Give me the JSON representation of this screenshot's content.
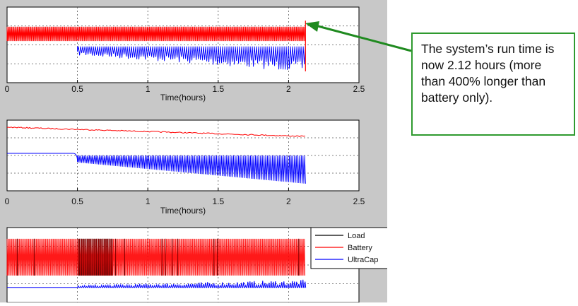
{
  "callout": {
    "text": "The system’s run time is now 2.12 hours (more than 400% longer than battery only).",
    "border_color": "#2f9a2f",
    "arrow_color": "#1f8a1f"
  },
  "chart_data": [
    {
      "type": "line",
      "title": "",
      "xlabel": "Time(hours)",
      "ylabel": "",
      "xlim": [
        0,
        2.5
      ],
      "x_ticks": [
        "0",
        "0.5",
        "1",
        "1.5",
        "2",
        "2.5"
      ],
      "grid": true,
      "series": [
        {
          "name": "Battery",
          "color": "#ff0000",
          "x_end": 2.12
        },
        {
          "name": "UltraCap",
          "color": "#0000ff",
          "x_start": 0.5,
          "x_end": 2.12
        }
      ]
    },
    {
      "type": "line",
      "title": "",
      "xlabel": "Time(hours)",
      "ylabel": "",
      "xlim": [
        0,
        2.5
      ],
      "x_ticks": [
        "0",
        "0.5",
        "1",
        "1.5",
        "2",
        "2.5"
      ],
      "grid": true,
      "series": [
        {
          "name": "Battery",
          "color": "#ff0000",
          "x_end": 2.12
        },
        {
          "name": "UltraCap",
          "color": "#0000ff",
          "x_end": 2.12
        }
      ]
    },
    {
      "type": "line",
      "title": "",
      "xlabel": "",
      "ylabel": "",
      "xlim": [
        0,
        2.5
      ],
      "grid": true,
      "legend": {
        "placement": "top-right",
        "entries": [
          "Load",
          "Battery",
          "UltraCap"
        ]
      },
      "series": [
        {
          "name": "Load",
          "color": "#000000",
          "x_end": 2.12
        },
        {
          "name": "Battery",
          "color": "#ff0000",
          "x_end": 2.12
        },
        {
          "name": "UltraCap",
          "color": "#0000ff",
          "x_end": 2.12
        }
      ]
    }
  ]
}
